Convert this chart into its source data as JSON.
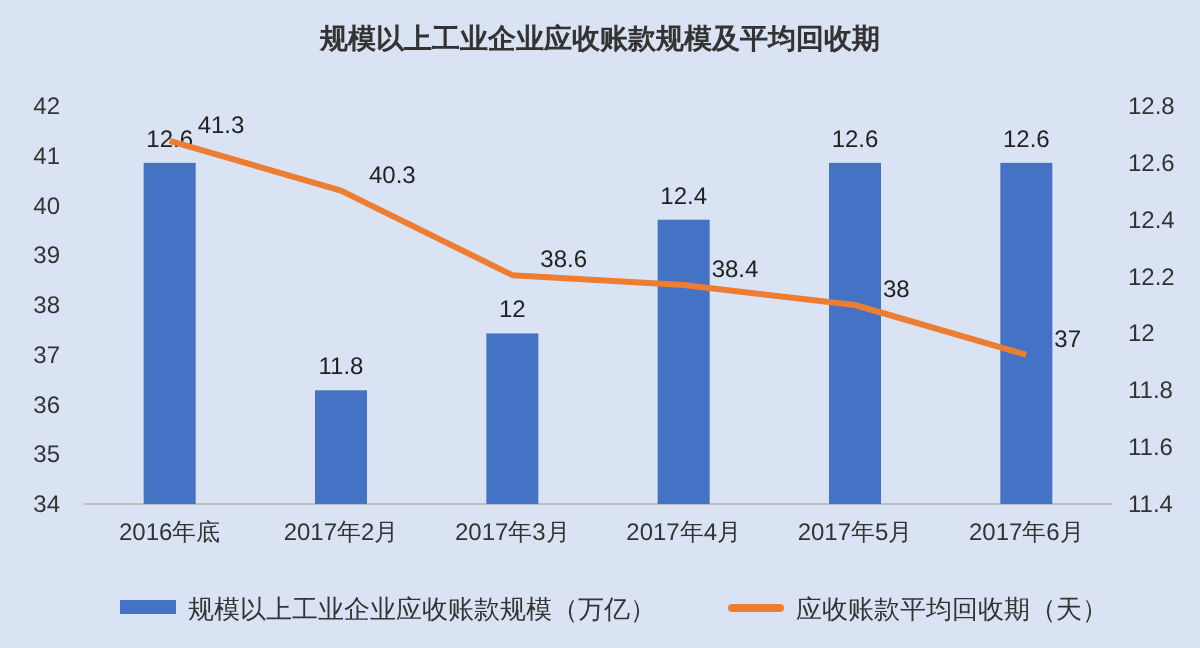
{
  "chart_data": {
    "type": "bar",
    "title": "规模以上工业企业应收账款规模及平均回收期",
    "categories": [
      "2016年底",
      "2017年2月",
      "2017年3月",
      "2017年4月",
      "2017年5月",
      "2017年6月"
    ],
    "series": [
      {
        "name": "规模以上工业企业应收账款规模（万亿）",
        "axis": "y2",
        "color": "#4472c4",
        "values": [
          12.6,
          11.8,
          12,
          12.4,
          12.6,
          12.6
        ]
      },
      {
        "name": "应收账款平均回收期（天）",
        "type": "line",
        "color": "#ed7d31",
        "values": [
          41.3,
          40.3,
          38.6,
          38.4,
          38,
          37
        ]
      }
    ],
    "ylim": [
      34,
      42
    ],
    "yticks": [
      34,
      35,
      36,
      37,
      38,
      39,
      40,
      41,
      42
    ],
    "y2lim": [
      11.4,
      12.8
    ],
    "y2ticks": [
      11.4,
      11.6,
      11.8,
      12,
      12.2,
      12.4,
      12.6,
      12.8
    ],
    "data_labels": true,
    "legend": "bottom",
    "marker": "none"
  }
}
